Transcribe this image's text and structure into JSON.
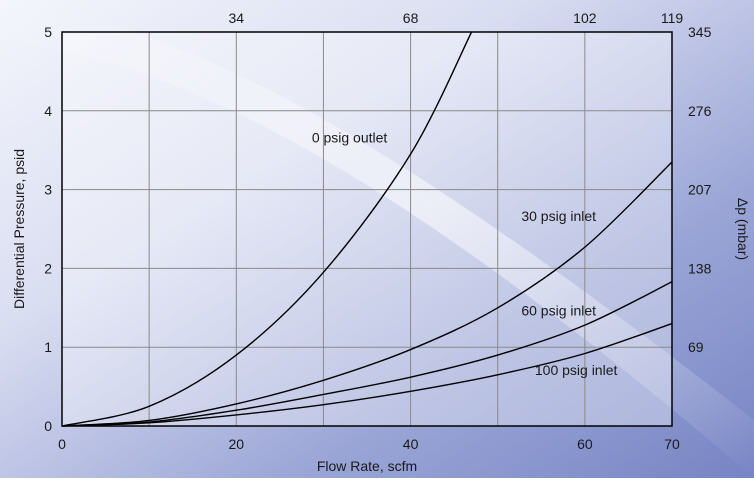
{
  "chart_data": {
    "type": "line",
    "title": "",
    "xlabel": "Flow Rate, scfm",
    "ylabel": "Differential Pressure, psid",
    "y2label": "Δp (mbar)",
    "xlim": [
      0,
      70
    ],
    "ylim": [
      0,
      5
    ],
    "grid": true,
    "x_ticks": [
      "0",
      "20",
      "40",
      "60",
      "70"
    ],
    "y_ticks": [
      "0",
      "1",
      "2",
      "3",
      "4",
      "5"
    ],
    "top_ticks": [
      {
        "label": "34",
        "x": 20
      },
      {
        "label": "68",
        "x": 40
      },
      {
        "label": "102",
        "x": 60
      },
      {
        "label": "119",
        "x": 70
      }
    ],
    "right_ticks": [
      {
        "label": "69",
        "y": 1
      },
      {
        "label": "138",
        "y": 2
      },
      {
        "label": "207",
        "y": 3
      },
      {
        "label": "276",
        "y": 4
      },
      {
        "label": "345",
        "y": 5
      }
    ],
    "series": [
      {
        "name": "0 psig outlet",
        "color": "#000000",
        "x": [
          0,
          10,
          20,
          30,
          40,
          47
        ],
        "y": [
          0,
          0.25,
          0.9,
          1.95,
          3.45,
          5.0
        ],
        "label_at": [
          33,
          3.6
        ]
      },
      {
        "name": "30 psig inlet",
        "color": "#000000",
        "x": [
          0,
          10,
          20,
          30,
          40,
          50,
          60,
          70
        ],
        "y": [
          0,
          0.07,
          0.28,
          0.58,
          0.97,
          1.5,
          2.27,
          3.35
        ],
        "label_at": [
          57,
          2.6
        ]
      },
      {
        "name": "60 psig inlet",
        "color": "#000000",
        "x": [
          0,
          10,
          20,
          30,
          40,
          50,
          60,
          70
        ],
        "y": [
          0,
          0.05,
          0.2,
          0.4,
          0.62,
          0.9,
          1.28,
          1.83
        ],
        "label_at": [
          57,
          1.4
        ]
      },
      {
        "name": "100 psig inlet",
        "color": "#000000",
        "x": [
          0,
          10,
          20,
          30,
          40,
          50,
          60,
          70
        ],
        "y": [
          0,
          0.04,
          0.14,
          0.27,
          0.44,
          0.65,
          0.92,
          1.3
        ],
        "label_at": [
          59,
          0.65
        ]
      }
    ]
  },
  "colors": {
    "background_light": "#f2f4fb",
    "background_mid": "#c5cbe7",
    "background_dark": "#7d89c8",
    "plot_area": "#ffffff",
    "grid": "#8a8a8a",
    "axis": "#000000"
  }
}
